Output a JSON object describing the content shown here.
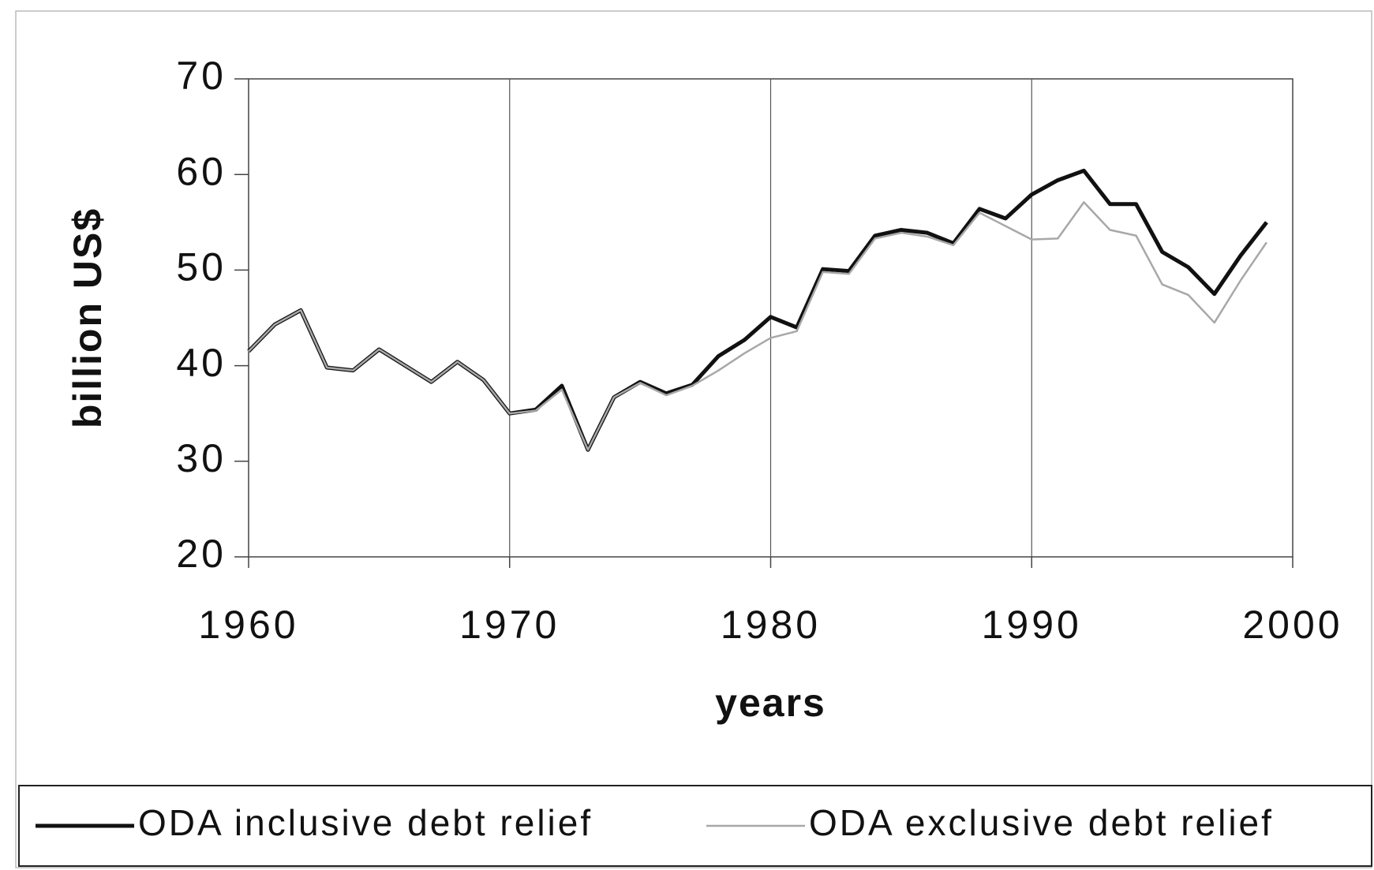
{
  "chart_data": {
    "type": "line",
    "x_label": "years",
    "y_label": "billion US$",
    "x": [
      1960,
      1961,
      1962,
      1963,
      1964,
      1965,
      1966,
      1967,
      1968,
      1969,
      1970,
      1971,
      1972,
      1973,
      1974,
      1975,
      1976,
      1977,
      1978,
      1979,
      1980,
      1981,
      1982,
      1983,
      1984,
      1985,
      1986,
      1987,
      1988,
      1989,
      1990,
      1991,
      1992,
      1993,
      1994,
      1995,
      1996,
      1997,
      1998,
      1999
    ],
    "series": [
      {
        "name": "ODA inclusive debt relief",
        "color": "#111111",
        "values": [
          41.5,
          44.3,
          45.8,
          39.8,
          39.5,
          41.7,
          40.0,
          38.3,
          40.4,
          38.5,
          35.0,
          35.4,
          37.9,
          31.2,
          36.7,
          38.3,
          37.1,
          38.0,
          41.0,
          42.7,
          45.1,
          44.0,
          50.1,
          49.9,
          53.6,
          54.2,
          53.9,
          52.8,
          56.4,
          55.4,
          57.9,
          59.4,
          60.4,
          56.9,
          56.9,
          51.9,
          50.3,
          47.5,
          51.5,
          55.0
        ]
      },
      {
        "name": "ODA exclusive debt relief",
        "color": "#a8a8a8",
        "values": [
          41.5,
          44.3,
          45.8,
          39.8,
          39.5,
          41.7,
          40.0,
          38.3,
          40.4,
          38.5,
          35.0,
          35.3,
          37.5,
          31.2,
          36.7,
          38.2,
          36.9,
          37.9,
          39.5,
          41.3,
          42.9,
          43.6,
          49.8,
          49.6,
          53.3,
          53.9,
          53.5,
          52.6,
          56.0,
          54.6,
          53.2,
          53.3,
          57.1,
          54.2,
          53.6,
          48.5,
          47.4,
          44.5,
          48.9,
          52.9
        ]
      }
    ],
    "xlim": [
      1960,
      2000
    ],
    "xticks": [
      1960,
      1970,
      1980,
      1990,
      2000
    ],
    "ylim": [
      20,
      70
    ],
    "yticks": [
      20,
      30,
      40,
      50,
      60,
      70
    ],
    "grid": "x",
    "legend": "bottom"
  }
}
